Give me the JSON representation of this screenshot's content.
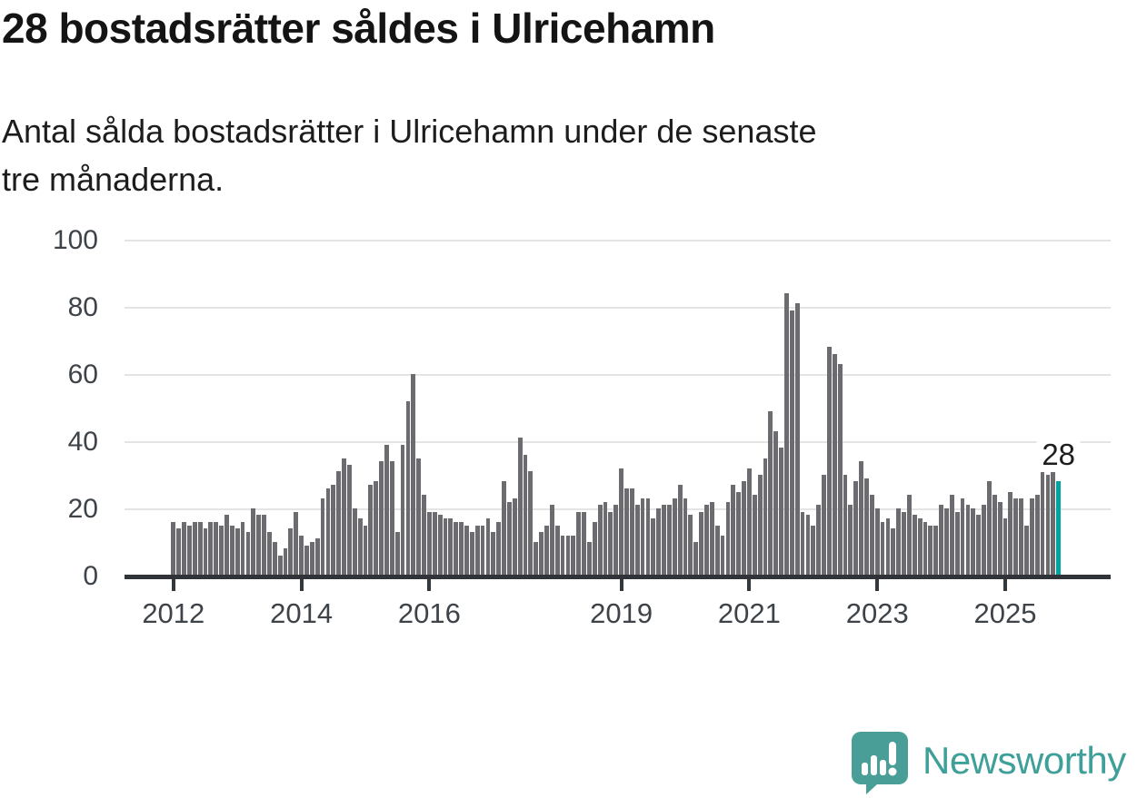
{
  "header": {
    "title": "28 bostadsrätter såldes i Ulricehamn",
    "subtitle": "Antal sålda bostadsrätter i Ulricehamn under de senaste\ntre månaderna."
  },
  "chart_data": {
    "type": "bar",
    "title": "28 bostadsrätter såldes i Ulricehamn",
    "subtitle": "Antal sålda bostadsrätter i Ulricehamn under de senaste tre månaderna.",
    "xlabel": "",
    "ylabel": "",
    "start_month": "2012-01",
    "frequency": "monthly",
    "values": [
      16,
      14,
      16,
      15,
      16,
      16,
      14,
      16,
      16,
      15,
      18,
      15,
      14,
      16,
      13,
      20,
      18,
      18,
      13,
      10,
      6,
      8,
      14,
      19,
      12,
      9,
      10,
      11,
      23,
      26,
      27,
      31,
      35,
      33,
      20,
      17,
      15,
      27,
      28,
      34,
      39,
      34,
      13,
      39,
      52,
      60,
      35,
      24,
      19,
      19,
      18,
      17,
      17,
      16,
      16,
      15,
      13,
      15,
      15,
      17,
      13,
      16,
      28,
      22,
      23,
      41,
      36,
      31,
      10,
      13,
      15,
      21,
      15,
      12,
      12,
      12,
      19,
      19,
      10,
      16,
      21,
      22,
      19,
      21,
      32,
      26,
      26,
      21,
      23,
      23,
      17,
      20,
      21,
      21,
      23,
      27,
      23,
      18,
      10,
      19,
      21,
      22,
      15,
      12,
      22,
      27,
      25,
      28,
      32,
      24,
      30,
      35,
      49,
      43,
      38,
      84,
      79,
      81,
      19,
      18,
      15,
      21,
      30,
      68,
      66,
      63,
      30,
      21,
      28,
      34,
      29,
      24,
      20,
      16,
      17,
      14,
      20,
      19,
      24,
      18,
      17,
      16,
      15,
      15,
      21,
      20,
      24,
      19,
      23,
      21,
      20,
      18,
      21,
      28,
      24,
      22,
      17,
      25,
      23,
      23,
      15,
      23,
      24,
      31,
      30,
      31,
      28
    ],
    "highlight": {
      "index": 166,
      "value": 28,
      "label": "28",
      "color": "#00a4a0"
    },
    "bar_color": "#6b6b70",
    "ylim": [
      0,
      100
    ],
    "yticks": [
      0,
      20,
      40,
      60,
      80,
      100
    ],
    "xticks": [
      {
        "label": "2012",
        "month_index": 0
      },
      {
        "label": "2014",
        "month_index": 24
      },
      {
        "label": "2016",
        "month_index": 48
      },
      {
        "label": "2019",
        "month_index": 84
      },
      {
        "label": "2021",
        "month_index": 108
      },
      {
        "label": "2023",
        "month_index": 132
      },
      {
        "label": "2025",
        "month_index": 156
      }
    ],
    "grid": true,
    "legend": false,
    "gridline_color": "#e4e4e4",
    "axis_color": "#303438"
  },
  "footer": {
    "brand": "Newsworthy",
    "brand_color": "#3f9f99"
  }
}
